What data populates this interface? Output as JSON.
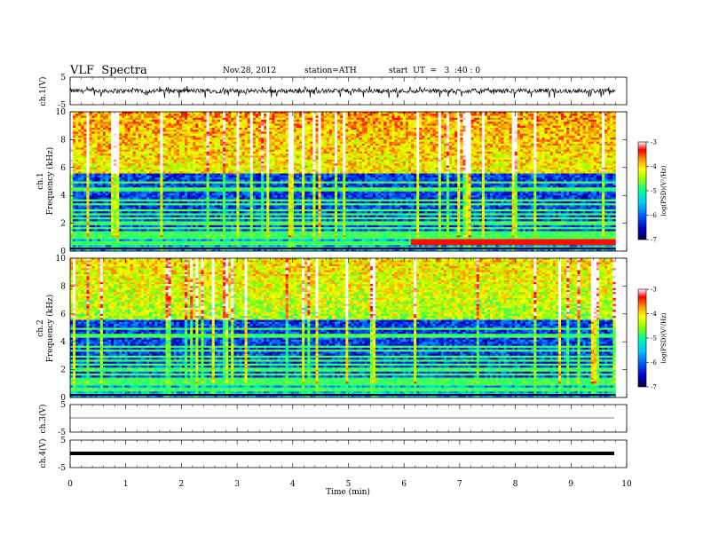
{
  "header": {
    "title": "VLF  Spectra",
    "date": "Nov.28, 2012",
    "station": "station=ATH",
    "start": "start  UT  =   3  :40 : 0"
  },
  "chart_data": [
    {
      "id": "ch1-waveform",
      "type": "line",
      "ylabel": "ch.1(V)",
      "yticks": [
        "5",
        "-5"
      ],
      "ylim": [
        -5,
        5
      ],
      "xlim": [
        0,
        10
      ],
      "data_end_min": 9.8,
      "trace": "noisy waveform, baseline near 0 V, amplitude about 1 V, frequent spikes to about -2 V"
    },
    {
      "id": "ch1-spectrogram",
      "type": "heatmap",
      "ylabel_line1": "ch.1",
      "ylabel_line2": "Frequency  (kHz)",
      "yticks": [
        "10",
        "8",
        "6",
        "4",
        "2",
        "0"
      ],
      "ylim": [
        0,
        10
      ],
      "xlim": [
        0,
        10
      ],
      "colorbar": {
        "label": "log(PSD)(V²/Hz)",
        "ticks": [
          "-3",
          "-4",
          "-5",
          "-6",
          "-7"
        ],
        "range": [
          -7,
          -3
        ]
      }
    },
    {
      "id": "ch2-spectrogram",
      "type": "heatmap",
      "ylabel_line1": "ch.2",
      "ylabel_line2": "Frequency  (kHz)",
      "yticks": [
        "10",
        "8",
        "6",
        "4",
        "2",
        "0"
      ],
      "ylim": [
        0,
        10
      ],
      "xlim": [
        0,
        10
      ],
      "colorbar": {
        "label": "log(PSD)(V²/Hz)",
        "ticks": [
          "-3",
          "-4",
          "-5",
          "-6",
          "-7"
        ],
        "range": [
          -7,
          -3
        ]
      }
    },
    {
      "id": "ch3-waveform",
      "type": "line",
      "ylabel": "ch.3(V)",
      "yticks": [
        "5",
        "-5"
      ],
      "ylim": [
        -5,
        5
      ],
      "trace": "flat line near 0 V"
    },
    {
      "id": "ch4-waveform",
      "type": "line",
      "ylabel": "ch.4(V)",
      "yticks": [
        "5",
        "-5"
      ],
      "ylim": [
        -5,
        5
      ],
      "trace": "thick band near 0 V"
    }
  ],
  "xaxis": {
    "label": "Time  (min)",
    "ticks": [
      "0",
      "1",
      "2",
      "3",
      "4",
      "5",
      "6",
      "7",
      "8",
      "9",
      "10"
    ],
    "xlim": [
      0,
      10
    ]
  },
  "colors": {
    "colormap": [
      "#000050",
      "#0000c8",
      "#0064ff",
      "#00c8ff",
      "#00ff96",
      "#96ff00",
      "#ffff00",
      "#ff9600",
      "#ff0000",
      "#ffffff"
    ],
    "trace": "#000000",
    "frame": "#000000",
    "background": "#ffffff"
  }
}
